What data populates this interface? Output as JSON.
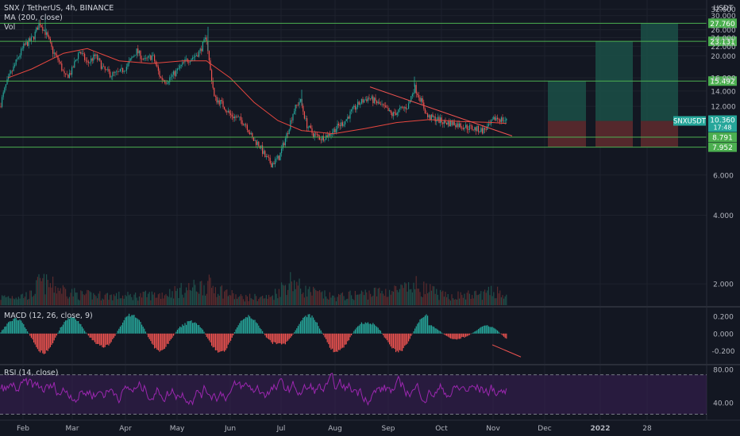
{
  "header": {
    "symbol": "SNX / TetherUS, 4h, BINANCE",
    "ma_label": "MA (200, close)",
    "vol_label": "Vol",
    "currency": "USDT",
    "year_label": "2022"
  },
  "colors": {
    "background": "#131722",
    "up": "#26a69a",
    "down": "#ef5350",
    "ma": "#e8473f",
    "level_line": "#4caf50",
    "level_tag": "#4caf50",
    "price_tag": "#26a69a",
    "macd_hist_up": "#26a69a",
    "macd_hist_down": "#ef5350",
    "rsi_line": "#9c27b0",
    "rsi_band": "#3b1f55",
    "long_profit": "#1b4d45",
    "long_loss": "#5c2a2e",
    "trendline": "#ef5350"
  },
  "chart_data": {
    "type": "candlestick",
    "x_ticks": [
      "Feb",
      "Mar",
      "Apr",
      "May",
      "Jun",
      "Jul",
      "Aug",
      "Sep",
      "Oct",
      "Nov",
      "Dec",
      "2022",
      "28"
    ],
    "price_ticks": [
      "32.000",
      "30.000",
      "26.000",
      "24.000",
      "22.000",
      "20.000",
      "16.000",
      "14.000",
      "12.000",
      "6.000",
      "4.000",
      "2.000"
    ],
    "scale": "log",
    "price_range": [
      1.6,
      34
    ],
    "price_path": [
      [
        0,
        12
      ],
      [
        8,
        15
      ],
      [
        18,
        18
      ],
      [
        30,
        22
      ],
      [
        42,
        24
      ],
      [
        50,
        28
      ],
      [
        58,
        25
      ],
      [
        66,
        21
      ],
      [
        74,
        19
      ],
      [
        82,
        16
      ],
      [
        90,
        17
      ],
      [
        100,
        21
      ],
      [
        110,
        18.5
      ],
      [
        120,
        20
      ],
      [
        130,
        17.5
      ],
      [
        140,
        16.5
      ],
      [
        150,
        16.8
      ],
      [
        160,
        18
      ],
      [
        172,
        21
      ],
      [
        182,
        19
      ],
      [
        192,
        20
      ],
      [
        202,
        16
      ],
      [
        210,
        15.5
      ],
      [
        222,
        17
      ],
      [
        234,
        19
      ],
      [
        246,
        20
      ],
      [
        252,
        21
      ],
      [
        260,
        24
      ],
      [
        264,
        18
      ],
      [
        270,
        13
      ],
      [
        278,
        12.5
      ],
      [
        290,
        11
      ],
      [
        300,
        10.6
      ],
      [
        310,
        10
      ],
      [
        318,
        8.6
      ],
      [
        326,
        8.2
      ],
      [
        334,
        7.2
      ],
      [
        342,
        6.7
      ],
      [
        352,
        7.2
      ],
      [
        362,
        9.2
      ],
      [
        370,
        11.5
      ],
      [
        378,
        12.8
      ],
      [
        386,
        10
      ],
      [
        394,
        9.1
      ],
      [
        404,
        8.7
      ],
      [
        414,
        9
      ],
      [
        424,
        9.7
      ],
      [
        434,
        10.3
      ],
      [
        444,
        11.5
      ],
      [
        454,
        12.5
      ],
      [
        464,
        13.1
      ],
      [
        474,
        12.5
      ],
      [
        484,
        11.8
      ],
      [
        494,
        11
      ],
      [
        504,
        11.6
      ],
      [
        514,
        12
      ],
      [
        522,
        14.6
      ],
      [
        530,
        12.8
      ],
      [
        538,
        10.8
      ],
      [
        548,
        10.6
      ],
      [
        560,
        10.2
      ],
      [
        572,
        10.1
      ],
      [
        584,
        9.8
      ],
      [
        596,
        9.6
      ],
      [
        608,
        9.4
      ],
      [
        616,
        9.8
      ],
      [
        624,
        10.7
      ],
      [
        632,
        10.5
      ],
      [
        638,
        10.36
      ]
    ],
    "ma200_path": [
      [
        10,
        16
      ],
      [
        40,
        17.5
      ],
      [
        80,
        20.5
      ],
      [
        110,
        21.5
      ],
      [
        150,
        19
      ],
      [
        190,
        18.5
      ],
      [
        230,
        19
      ],
      [
        260,
        19
      ],
      [
        290,
        16
      ],
      [
        320,
        12.5
      ],
      [
        350,
        10.4
      ],
      [
        380,
        9.4
      ],
      [
        420,
        9.1
      ],
      [
        460,
        9.6
      ],
      [
        500,
        10.2
      ],
      [
        540,
        10.5
      ],
      [
        580,
        10.3
      ],
      [
        620,
        10.2
      ],
      [
        638,
        10.1
      ]
    ],
    "volume_path": [
      [
        0,
        0.3
      ],
      [
        40,
        0.4
      ],
      [
        50,
        0.9
      ],
      [
        100,
        0.4
      ],
      [
        160,
        0.35
      ],
      [
        200,
        0.4
      ],
      [
        248,
        0.7
      ],
      [
        262,
        0.8
      ],
      [
        300,
        0.3
      ],
      [
        340,
        0.3
      ],
      [
        368,
        1
      ],
      [
        380,
        0.6
      ],
      [
        420,
        0.3
      ],
      [
        460,
        0.45
      ],
      [
        510,
        0.6
      ],
      [
        524,
        0.75
      ],
      [
        560,
        0.35
      ],
      [
        600,
        0.4
      ],
      [
        628,
        0.55
      ],
      [
        638,
        0.3
      ]
    ],
    "levels": [
      {
        "value": "27.760",
        "price": 27.76
      },
      {
        "value": "23.131",
        "price": 23.131
      },
      {
        "value": "15.492",
        "price": 15.492
      },
      {
        "value": "8.791",
        "price": 8.791
      },
      {
        "value": "7.952",
        "price": 7.952
      }
    ],
    "current_price": {
      "symbol": "SNXUSDT",
      "value": "10.360",
      "countdown": "17:48",
      "price": 10.36
    },
    "trendline": [
      [
        466,
        14.6
      ],
      [
        645,
        8.9
      ]
    ],
    "long_positions": [
      {
        "x0": 690,
        "x1": 738,
        "entry": 10.36,
        "target": 15.492,
        "stop": 7.952
      },
      {
        "x0": 750,
        "x1": 797,
        "entry": 10.36,
        "target": 23.131,
        "stop": 7.952
      },
      {
        "x0": 807,
        "x1": 854,
        "entry": 10.36,
        "target": 27.76,
        "stop": 7.952
      }
    ],
    "macd": {
      "label": "MACD (12, 26, close, 9)",
      "ticks": [
        "0.200",
        "0.000",
        "-0.200"
      ],
      "range": [
        -0.35,
        0.3
      ],
      "trendline": [
        [
          620,
          -0.13
        ],
        [
          656,
          -0.27
        ]
      ]
    },
    "rsi": {
      "label": "RSI (14, close)",
      "ticks": [
        "80.00",
        "40.00"
      ],
      "range": [
        20,
        85
      ],
      "band": [
        30,
        70
      ]
    }
  }
}
